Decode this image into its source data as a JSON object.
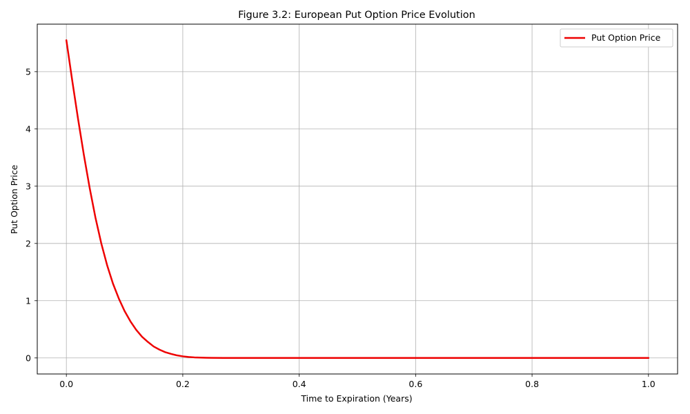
{
  "chart_data": {
    "type": "line",
    "title": "Figure 3.2: European Put Option Price Evolution",
    "xlabel": "Time to Expiration (Years)",
    "ylabel": "Put Option Price",
    "xlim": [
      -0.05,
      1.05
    ],
    "ylim": [
      -0.28,
      5.83
    ],
    "xticks": [
      0.0,
      0.2,
      0.4,
      0.6,
      0.8,
      1.0
    ],
    "xtick_labels": [
      "0.0",
      "0.2",
      "0.4",
      "0.6",
      "0.8",
      "1.0"
    ],
    "yticks": [
      0,
      1,
      2,
      3,
      4,
      5
    ],
    "ytick_labels": [
      "0",
      "1",
      "2",
      "3",
      "4",
      "5"
    ],
    "grid": true,
    "legend": {
      "placement": "top-right"
    },
    "series": [
      {
        "name": "Put Option Price",
        "color": "#ee0000",
        "x": [
          0.0,
          0.01,
          0.02,
          0.03,
          0.04,
          0.05,
          0.06,
          0.07,
          0.08,
          0.09,
          0.1,
          0.11,
          0.12,
          0.13,
          0.14,
          0.15,
          0.16,
          0.17,
          0.18,
          0.19,
          0.2,
          0.21,
          0.22,
          0.23,
          0.24,
          0.25,
          0.27,
          0.3,
          0.35,
          0.4,
          0.5,
          0.6,
          0.7,
          0.8,
          0.9,
          1.0
        ],
        "y": [
          5.55,
          4.85,
          4.18,
          3.55,
          2.97,
          2.45,
          2.0,
          1.62,
          1.3,
          1.04,
          0.82,
          0.64,
          0.49,
          0.37,
          0.28,
          0.2,
          0.145,
          0.1,
          0.07,
          0.045,
          0.028,
          0.017,
          0.01,
          0.006,
          0.003,
          0.002,
          0.0,
          0.0,
          0.0,
          0.0,
          0.0,
          0.0,
          0.0,
          0.0,
          0.0,
          0.0
        ]
      }
    ]
  }
}
